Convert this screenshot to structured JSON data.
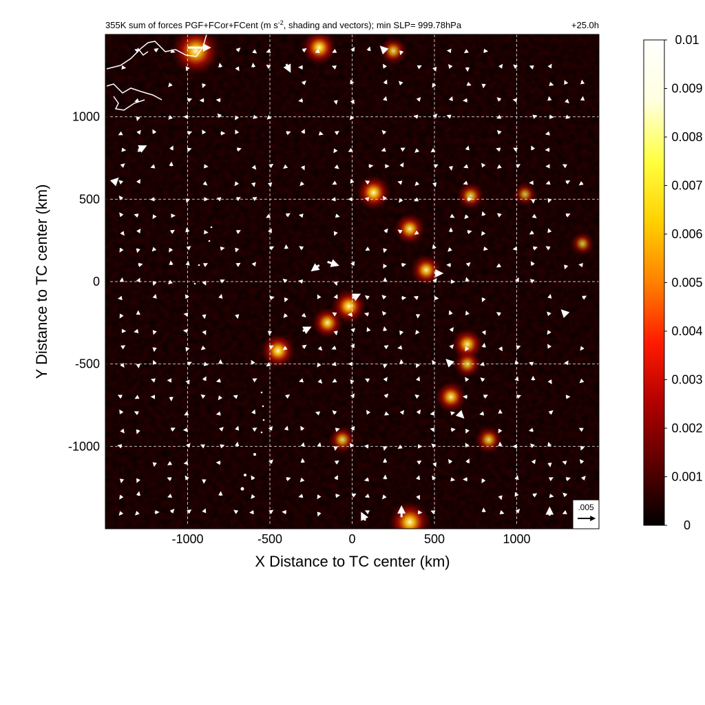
{
  "chart_data": {
    "type": "heatmap",
    "title": "355K sum of forces PGF+FCor+FCent (m s",
    "title_sup": "-2",
    "title_rest": ", shading and vectors); min SLP= 999.78hPa",
    "time_label": "+25.0h",
    "xlabel": "X Distance to TC center (km)",
    "ylabel": "Y Distance to TC center (km)",
    "xlim": [
      -1500,
      1500
    ],
    "ylim": [
      -1500,
      1500
    ],
    "xticks": [
      -1000,
      -500,
      0,
      500,
      1000
    ],
    "xtick_labels": [
      "-1000",
      "-500",
      "0",
      "500",
      "1000"
    ],
    "yticks": [
      1000,
      500,
      0,
      -500,
      -1000
    ],
    "ytick_labels": [
      "1000",
      "500",
      "0",
      "-500",
      "-1000"
    ],
    "grid": true,
    "colorbar": {
      "min": 0,
      "max": 0.01,
      "ticks": [
        0.01,
        0.009,
        0.008,
        0.007,
        0.006,
        0.005,
        0.004,
        0.003,
        0.002,
        0.001,
        0
      ],
      "tick_labels": [
        "0.01",
        "0.009",
        "0.008",
        "0.007",
        "0.006",
        "0.005",
        "0.004",
        "0.003",
        "0.002",
        "0.001",
        "0"
      ],
      "colors": [
        "#000000",
        "#5a0000",
        "#b00000",
        "#ff1a00",
        "#ff8000",
        "#ffd000",
        "#ffff40",
        "#ffffe0",
        "#ffffff"
      ]
    },
    "reference_vector": {
      "label": ".005",
      "magnitude": 0.005
    },
    "hotspots": [
      {
        "x": -20,
        "y": -150,
        "v": 0.006
      },
      {
        "x": -150,
        "y": -250,
        "v": 0.005
      },
      {
        "x": -450,
        "y": -420,
        "v": 0.006
      },
      {
        "x": 130,
        "y": 540,
        "v": 0.006
      },
      {
        "x": 350,
        "y": 320,
        "v": 0.005
      },
      {
        "x": 720,
        "y": 520,
        "v": 0.004
      },
      {
        "x": 1050,
        "y": 530,
        "v": 0.003
      },
      {
        "x": 700,
        "y": -380,
        "v": 0.005
      },
      {
        "x": 600,
        "y": -700,
        "v": 0.005
      },
      {
        "x": -60,
        "y": -960,
        "v": 0.004
      },
      {
        "x": 830,
        "y": -960,
        "v": 0.004
      },
      {
        "x": -950,
        "y": 1400,
        "v": 0.01
      },
      {
        "x": -200,
        "y": 1420,
        "v": 0.006
      },
      {
        "x": 250,
        "y": 1400,
        "v": 0.004
      },
      {
        "x": 350,
        "y": -1460,
        "v": 0.008
      },
      {
        "x": 1400,
        "y": 230,
        "v": 0.003
      },
      {
        "x": 450,
        "y": 70,
        "v": 0.005
      },
      {
        "x": 700,
        "y": -500,
        "v": 0.004
      }
    ],
    "vectors": [
      {
        "x": -1000,
        "y": 1420,
        "u": 0.007,
        "v": 0.0
      },
      {
        "x": -400,
        "y": 1320,
        "u": 0.001,
        "v": -0.002
      },
      {
        "x": -1300,
        "y": 800,
        "u": 0.002,
        "v": 0.001
      },
      {
        "x": -150,
        "y": 120,
        "u": 0.003,
        "v": -0.001
      },
      {
        "x": -200,
        "y": 100,
        "u": -0.002,
        "v": -0.0015
      },
      {
        "x": 0,
        "y": -100,
        "u": 0.002,
        "v": 0.001
      },
      {
        "x": -300,
        "y": -300,
        "u": 0.002,
        "v": 0.001
      },
      {
        "x": 500,
        "y": 50,
        "u": 0.002,
        "v": 0.0
      },
      {
        "x": 650,
        "y": -800,
        "u": 0.001,
        "v": -0.001
      },
      {
        "x": 1300,
        "y": -200,
        "u": -0.001,
        "v": 0.001
      },
      {
        "x": 300,
        "y": -1430,
        "u": 0.0,
        "v": 0.003
      },
      {
        "x": 80,
        "y": -1450,
        "u": -0.001,
        "v": 0.002
      },
      {
        "x": 1200,
        "y": -1420,
        "u": 0.0,
        "v": 0.002
      },
      {
        "x": 200,
        "y": 1400,
        "u": -0.001,
        "v": 0.001
      },
      {
        "x": -1450,
        "y": 600,
        "u": 0.001,
        "v": 0.001
      },
      {
        "x": 600,
        "y": -500,
        "u": -0.001,
        "v": 0.001
      }
    ]
  }
}
